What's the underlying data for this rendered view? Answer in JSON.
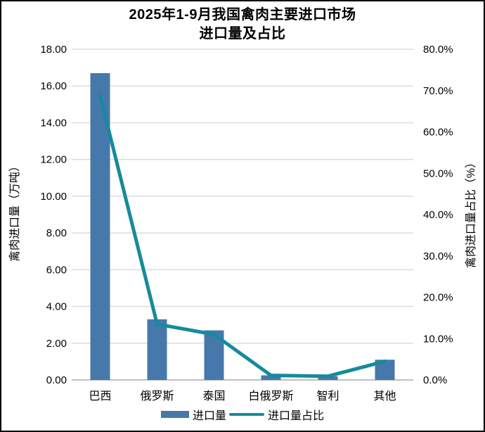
{
  "title": {
    "line1": "2025年1-9月我国禽肉主要进口市场",
    "line2": "进口量及占比"
  },
  "chart_data": {
    "type": "bar+line combo",
    "categories": [
      "巴西",
      "俄罗斯",
      "泰国",
      "白俄罗斯",
      "智利",
      "其他"
    ],
    "series": [
      {
        "name": "进口量",
        "type": "bar",
        "axis": "left",
        "unit": "万吨",
        "values": [
          16.7,
          3.3,
          2.7,
          0.25,
          0.2,
          1.1
        ]
      },
      {
        "name": "进口量占比",
        "type": "line",
        "axis": "right",
        "unit": "%",
        "values": [
          68.7,
          13.5,
          11.0,
          1.1,
          0.9,
          4.5
        ]
      }
    ],
    "left_axis": {
      "label": "禽肉进口量（万吨）",
      "min": 0,
      "max": 18,
      "step": 2,
      "tick_labels": [
        "0.00",
        "2.00",
        "4.00",
        "6.00",
        "8.00",
        "10.00",
        "12.00",
        "14.00",
        "16.00",
        "18.00"
      ]
    },
    "right_axis": {
      "label": "禽肉进口量占比（%）",
      "min": 0,
      "max": 80,
      "step": 10,
      "tick_labels": [
        "0.0%",
        "10.0%",
        "20.0%",
        "30.0%",
        "40.0%",
        "50.0%",
        "60.0%",
        "70.0%",
        "80.0%"
      ]
    },
    "grid": true,
    "legend_position": "bottom"
  },
  "legend": {
    "bar_label": "进口量",
    "line_label": "进口量占比"
  },
  "colors": {
    "bar": "#4778AC",
    "line": "#178A9D",
    "gridline": "#DCDCDC",
    "axis_line": "#BFBFBF",
    "text": "#000000",
    "border": "#000000",
    "background": "#FFFFFF"
  }
}
